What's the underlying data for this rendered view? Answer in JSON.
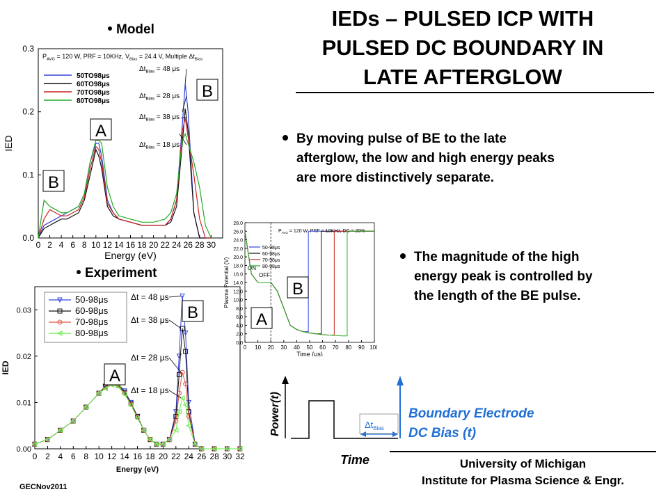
{
  "title": {
    "line1": "IEDs – PULSED ICP WITH",
    "line2": "PULSED DC BOUNDARY IN",
    "line3": "LATE AFTERGLOW"
  },
  "bullets": {
    "b1": [
      "By moving pulse of BE to the late",
      "afterglow, the low and  high energy peaks",
      "are more distinctively separate."
    ],
    "b2": [
      "The magnitude of the high",
      "energy peak is controlled by",
      "the length of the BE pulse."
    ]
  },
  "labels": {
    "model": "Model",
    "experiment": "Experiment",
    "power": "Power(t)",
    "time": "Time",
    "delta_t": "Δt",
    "delta_t_sub": "Bias",
    "be_line1": "Boundary Electrode",
    "be_line2": "DC Bias (t)"
  },
  "footer": {
    "line1": "University of Michigan",
    "line2": "Institute for Plasma Science & Engr.",
    "conference": "GECNov2011"
  },
  "chart_data": [
    {
      "type": "line",
      "panel": "model",
      "xlabel": "Energy (eV)",
      "ylabel": "IED",
      "xlim": [
        0,
        32
      ],
      "ylim": [
        0,
        0.3
      ],
      "xticks": [
        0,
        2,
        4,
        6,
        8,
        10,
        12,
        14,
        16,
        18,
        20,
        22,
        24,
        26,
        28,
        30
      ],
      "yticks": [
        "0.0",
        "0.1",
        "0.2",
        "0.3"
      ],
      "header": "P_AVG = 120 W, PRF = 10KHz, V_Bias = 24.4 V, Multiple Δt_Bias",
      "peak_letters": [
        "A",
        "B",
        "B"
      ],
      "annotations": [
        "Δt_Bias = 48 μs",
        "Δt_Bias = 28 μs",
        "Δt_Bias = 38 μs",
        "Δt_Bias = 18 μs"
      ],
      "x": [
        0,
        1,
        2,
        3,
        4,
        5,
        6,
        7,
        8,
        9,
        10,
        10.5,
        11,
        12,
        13,
        14,
        16,
        18,
        20,
        22,
        23,
        24,
        25,
        25.5,
        26,
        27,
        28,
        29,
        30
      ],
      "series": [
        {
          "name": "50TO98μs",
          "color": "#3344dd",
          "values": [
            0.0,
            0.02,
            0.025,
            0.03,
            0.035,
            0.04,
            0.045,
            0.05,
            0.07,
            0.12,
            0.15,
            0.15,
            0.13,
            0.06,
            0.04,
            0.03,
            0.025,
            0.02,
            0.02,
            0.02,
            0.03,
            0.06,
            0.18,
            0.245,
            0.2,
            0.04,
            0.0,
            0.0,
            0.0
          ]
        },
        {
          "name": "60TO98μs",
          "color": "#111111",
          "values": [
            0.0,
            0.015,
            0.02,
            0.025,
            0.03,
            0.03,
            0.035,
            0.04,
            0.06,
            0.1,
            0.14,
            0.13,
            0.11,
            0.05,
            0.035,
            0.03,
            0.025,
            0.02,
            0.02,
            0.02,
            0.025,
            0.05,
            0.15,
            0.205,
            0.17,
            0.04,
            0.0,
            0.0,
            0.0
          ]
        },
        {
          "name": "70TO98μs",
          "color": "#cc2222",
          "values": [
            0.0,
            0.03,
            0.045,
            0.04,
            0.035,
            0.035,
            0.04,
            0.045,
            0.065,
            0.11,
            0.145,
            0.14,
            0.12,
            0.055,
            0.04,
            0.03,
            0.025,
            0.02,
            0.02,
            0.02,
            0.03,
            0.06,
            0.17,
            0.19,
            0.16,
            0.1,
            0.03,
            0.0,
            0.0
          ]
        },
        {
          "name": "80TO98μs",
          "color": "#22aa22",
          "values": [
            0.0,
            0.06,
            0.05,
            0.045,
            0.04,
            0.04,
            0.045,
            0.05,
            0.07,
            0.12,
            0.155,
            0.155,
            0.15,
            0.08,
            0.05,
            0.035,
            0.03,
            0.025,
            0.025,
            0.03,
            0.04,
            0.07,
            0.155,
            0.165,
            0.15,
            0.12,
            0.08,
            0.02,
            0.0
          ]
        }
      ]
    },
    {
      "type": "line",
      "panel": "plasma-potential",
      "xlabel": "Time (μs)",
      "ylabel": "Plasma Potential (V)",
      "xlim": [
        0,
        100
      ],
      "ylim": [
        0,
        28
      ],
      "xticks": [
        0,
        10,
        20,
        30,
        40,
        50,
        60,
        70,
        80,
        90,
        100
      ],
      "yticks": [
        "0.0",
        "2.0",
        "4.0",
        "6.0",
        "8.0",
        "10.0",
        "12.0",
        "14.0",
        "16.0",
        "18.0",
        "20.0",
        "22.0",
        "24.0",
        "26.0",
        "28.0"
      ],
      "header": "P_AVG = 120 W, PRF = 10KHz, DC = 20%",
      "phase_labels": [
        "ON",
        "OFF"
      ],
      "peak_letters": [
        "A",
        "B"
      ],
      "x": [
        0,
        5,
        10,
        15,
        20,
        25,
        30,
        35,
        40,
        45,
        50,
        55,
        60,
        65,
        70,
        75,
        80,
        85,
        90,
        95,
        100
      ],
      "series": [
        {
          "name": "50-98μs",
          "color": "#3344dd",
          "step_at": 49,
          "values": [
            26,
            16,
            14,
            14,
            14,
            12,
            8,
            4,
            3,
            2.5,
            26,
            26,
            26,
            26,
            26,
            26,
            26,
            26,
            26,
            26,
            26
          ]
        },
        {
          "name": "60-98μs",
          "color": "#111111",
          "step_at": 59,
          "values": [
            26,
            16,
            14,
            14,
            14,
            12,
            8,
            4,
            3,
            2.5,
            2.2,
            2,
            26,
            26,
            26,
            26,
            26,
            26,
            26,
            26,
            26
          ]
        },
        {
          "name": "70-98μs",
          "color": "#cc2222",
          "step_at": 69,
          "values": [
            26,
            16,
            14,
            14,
            14,
            12,
            8,
            4,
            3,
            2.5,
            2.2,
            2,
            1.8,
            1.7,
            26,
            26,
            26,
            26,
            26,
            26,
            26
          ]
        },
        {
          "name": "80-98μs",
          "color": "#22aa22",
          "step_at": 79,
          "values": [
            26,
            16,
            14,
            14,
            14,
            12,
            8,
            4,
            3,
            2.5,
            2.2,
            2,
            1.8,
            1.7,
            1.6,
            1.5,
            26,
            26,
            26,
            26,
            26
          ]
        }
      ]
    },
    {
      "type": "scatter",
      "panel": "experiment",
      "xlabel": "Energy (eV)",
      "ylabel": "IED",
      "xlim": [
        0,
        32
      ],
      "ylim": [
        0,
        0.035
      ],
      "xticks": [
        0,
        2,
        4,
        6,
        8,
        10,
        12,
        14,
        16,
        18,
        20,
        22,
        24,
        26,
        28,
        30,
        32
      ],
      "yticks": [
        "0.00",
        "0.01",
        "0.02",
        "0.03"
      ],
      "peak_letters": [
        "A",
        "B"
      ],
      "annotations": [
        "Δt = 48 μs",
        "Δt = 38 μs",
        "Δt = 28 μs",
        "Δt = 18 μs"
      ],
      "x": [
        0,
        2,
        4,
        6,
        8,
        10,
        11,
        12,
        13,
        14,
        15,
        16,
        17,
        18,
        19,
        20,
        21,
        22,
        22.5,
        23,
        23.5,
        24,
        25,
        26,
        28,
        30,
        32
      ],
      "series": [
        {
          "name": "50-98μs",
          "color": "#3344dd",
          "marker": "triangle-down",
          "values": [
            0.001,
            0.002,
            0.004,
            0.006,
            0.009,
            0.012,
            0.0135,
            0.0145,
            0.014,
            0.0125,
            0.01,
            0.007,
            0.004,
            0.002,
            0.001,
            0.001,
            0.002,
            0.008,
            0.02,
            0.033,
            0.025,
            0.01,
            0.001,
            0,
            0,
            0,
            0
          ]
        },
        {
          "name": "60-98μs",
          "color": "#111111",
          "marker": "square",
          "values": [
            0.001,
            0.002,
            0.004,
            0.006,
            0.009,
            0.012,
            0.0135,
            0.0142,
            0.0138,
            0.0122,
            0.0098,
            0.007,
            0.004,
            0.002,
            0.001,
            0.001,
            0.002,
            0.007,
            0.016,
            0.026,
            0.021,
            0.008,
            0.001,
            0,
            0,
            0,
            0
          ]
        },
        {
          "name": "70-98μs",
          "color": "#dd5544",
          "marker": "circle",
          "values": [
            0.001,
            0.002,
            0.004,
            0.006,
            0.009,
            0.012,
            0.0132,
            0.014,
            0.0136,
            0.012,
            0.0096,
            0.0068,
            0.004,
            0.002,
            0.001,
            0.001,
            0.002,
            0.006,
            0.012,
            0.0165,
            0.014,
            0.007,
            0.001,
            0,
            0,
            0,
            0
          ]
        },
        {
          "name": "80-98μs",
          "color": "#66ee44",
          "marker": "triangle-left",
          "values": [
            0.001,
            0.002,
            0.004,
            0.006,
            0.009,
            0.012,
            0.013,
            0.0138,
            0.0134,
            0.0118,
            0.0094,
            0.0066,
            0.004,
            0.002,
            0.001,
            0.001,
            0.002,
            0.004,
            0.008,
            0.011,
            0.0095,
            0.005,
            0.001,
            0,
            0,
            0,
            0
          ]
        }
      ]
    }
  ]
}
